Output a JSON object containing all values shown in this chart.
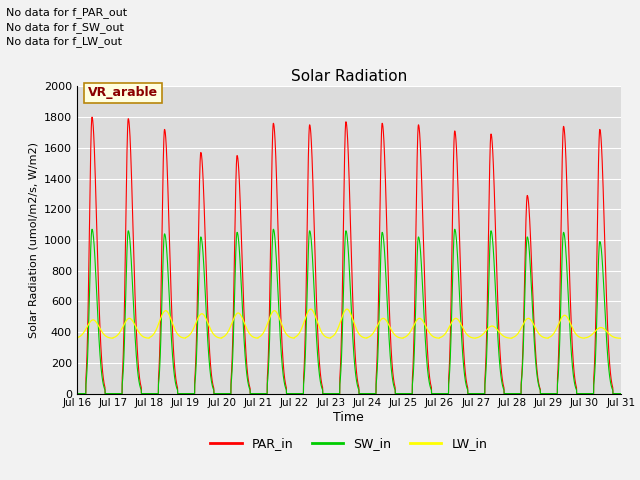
{
  "title": "Solar Radiation",
  "xlabel": "Time",
  "ylabel": "Solar Radiation (umol/m2/s, W/m2)",
  "xlim_start": 16.0,
  "xlim_end": 31.0,
  "ylim": [
    0,
    2000
  ],
  "yticks": [
    0,
    200,
    400,
    600,
    800,
    1000,
    1200,
    1400,
    1600,
    1800,
    2000
  ],
  "xtick_labels": [
    "Jul 16",
    "Jul 17",
    "Jul 18",
    "Jul 19",
    "Jul 20",
    "Jul 21",
    "Jul 22",
    "Jul 23",
    "Jul 24",
    "Jul 25",
    "Jul 26",
    "Jul 27",
    "Jul 28",
    "Jul 29",
    "Jul 30",
    "Jul 31"
  ],
  "xtick_positions": [
    16,
    17,
    18,
    19,
    20,
    21,
    22,
    23,
    24,
    25,
    26,
    27,
    28,
    29,
    30,
    31
  ],
  "line_colors": {
    "PAR_in": "#FF0000",
    "SW_in": "#00CC00",
    "LW_in": "#FFFF00"
  },
  "legend_title": "VR_arable",
  "annotations": [
    "No data for f_PAR_out",
    "No data for f_SW_out",
    "No data for f_LW_out"
  ],
  "bg_color": "#DCDCDC",
  "par_peaks": [
    1800,
    1790,
    1720,
    1570,
    1550,
    1760,
    1750,
    1770,
    1760,
    1750,
    1710,
    1690,
    1290,
    1740,
    1720
  ],
  "sw_peaks": [
    1070,
    1060,
    1040,
    1020,
    1050,
    1070,
    1060,
    1060,
    1050,
    1020,
    1070,
    1060,
    1020,
    1050,
    990
  ],
  "lw_base": 360,
  "lw_day_peak": [
    480,
    490,
    540,
    520,
    525,
    540,
    550,
    550,
    490,
    490,
    490,
    440,
    490,
    510,
    430
  ],
  "lw_night_base": 355
}
